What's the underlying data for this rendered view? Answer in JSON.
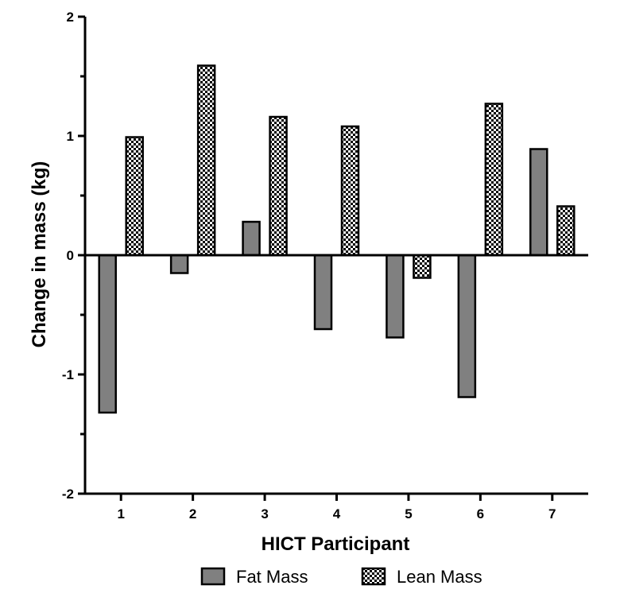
{
  "chart_data": {
    "type": "bar",
    "xlabel": "HICT Participant",
    "ylabel": "Change in mass (kg)",
    "categories": [
      "1",
      "2",
      "3",
      "4",
      "5",
      "6",
      "7"
    ],
    "ylim": [
      -2,
      2
    ],
    "yticks": [
      "-2",
      "-1",
      "0",
      "1",
      "2"
    ],
    "grid": false,
    "legend_position": "bottom",
    "series": [
      {
        "name": "Fat Mass",
        "values": [
          -1.32,
          -0.15,
          0.28,
          -0.62,
          -0.69,
          -1.19,
          0.89
        ],
        "color": "#808080",
        "pattern": "solid"
      },
      {
        "name": "Lean Mass",
        "values": [
          0.99,
          1.59,
          1.16,
          1.08,
          -0.19,
          1.27,
          0.41
        ],
        "color": "#ffffff",
        "pattern": "checkerboard"
      }
    ]
  }
}
